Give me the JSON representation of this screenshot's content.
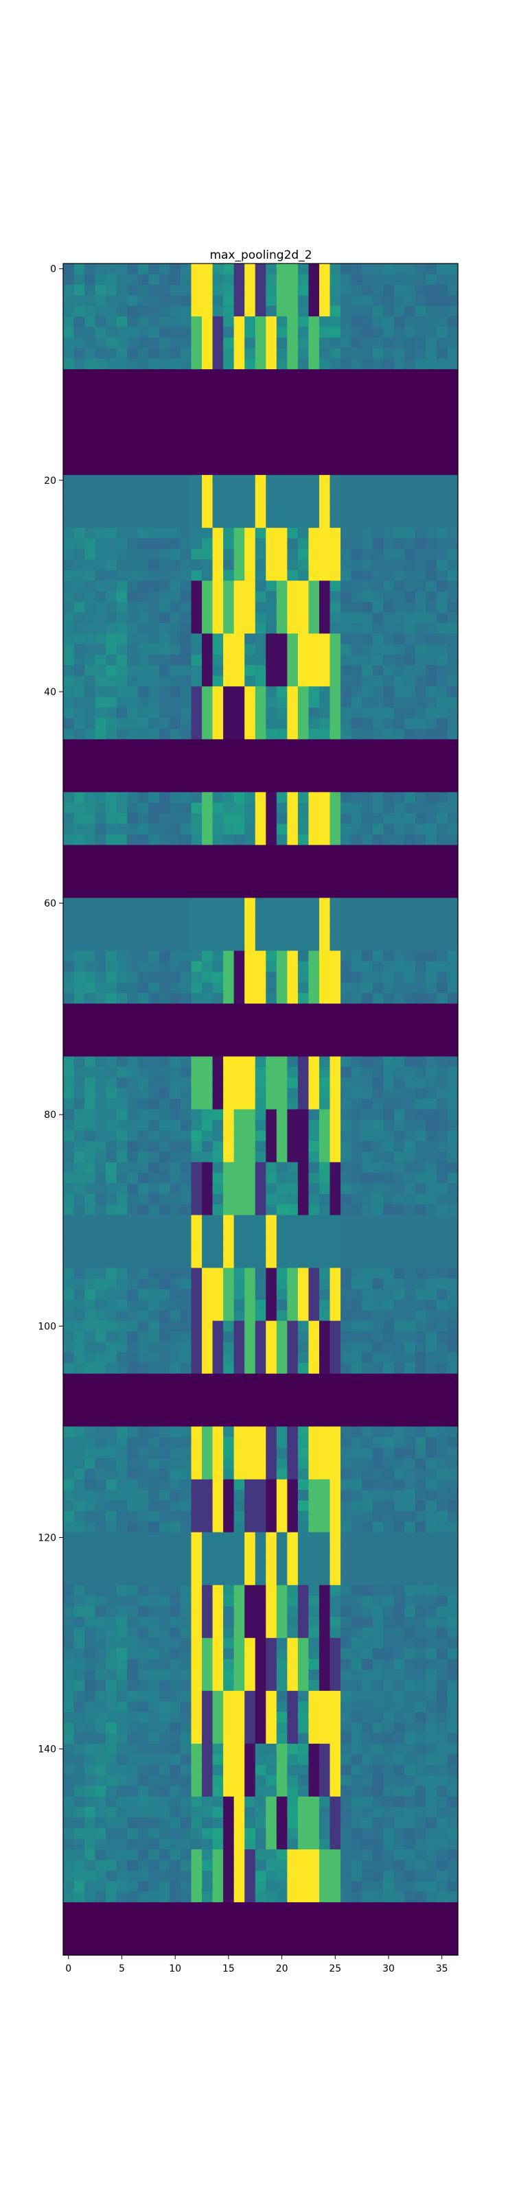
{
  "chart_data": {
    "type": "heatmap",
    "title": "max_pooling2d_2",
    "colormap": "viridis",
    "n_cols": 37,
    "n_rows": 160,
    "xlim": [
      -0.5,
      36.5
    ],
    "ylim": [
      159.5,
      -0.5
    ],
    "x_ticks": [
      0,
      5,
      10,
      15,
      20,
      25,
      30,
      35
    ],
    "y_ticks": [
      0,
      20,
      40,
      60,
      80,
      100,
      120,
      140
    ],
    "value_range": [
      0,
      1
    ],
    "bands": [
      {
        "rows": [
          0,
          4
        ],
        "kind": "active"
      },
      {
        "rows": [
          5,
          9
        ],
        "kind": "active"
      },
      {
        "rows": [
          10,
          19
        ],
        "kind": "zero",
        "value": 0
      },
      {
        "rows": [
          20,
          24
        ],
        "kind": "flat"
      },
      {
        "rows": [
          25,
          29
        ],
        "kind": "active"
      },
      {
        "rows": [
          30,
          34
        ],
        "kind": "active"
      },
      {
        "rows": [
          35,
          39
        ],
        "kind": "active"
      },
      {
        "rows": [
          40,
          44
        ],
        "kind": "active"
      },
      {
        "rows": [
          45,
          49
        ],
        "kind": "zero",
        "value": 0
      },
      {
        "rows": [
          50,
          54
        ],
        "kind": "active"
      },
      {
        "rows": [
          55,
          59
        ],
        "kind": "zero",
        "value": 0
      },
      {
        "rows": [
          60,
          64
        ],
        "kind": "flat"
      },
      {
        "rows": [
          65,
          69
        ],
        "kind": "active"
      },
      {
        "rows": [
          70,
          74
        ],
        "kind": "zero",
        "value": 0
      },
      {
        "rows": [
          75,
          79
        ],
        "kind": "active"
      },
      {
        "rows": [
          80,
          84
        ],
        "kind": "active"
      },
      {
        "rows": [
          85,
          89
        ],
        "kind": "active"
      },
      {
        "rows": [
          90,
          94
        ],
        "kind": "flat"
      },
      {
        "rows": [
          95,
          99
        ],
        "kind": "active"
      },
      {
        "rows": [
          100,
          104
        ],
        "kind": "active"
      },
      {
        "rows": [
          105,
          109
        ],
        "kind": "zero",
        "value": 0
      },
      {
        "rows": [
          110,
          114
        ],
        "kind": "active"
      },
      {
        "rows": [
          115,
          119
        ],
        "kind": "active"
      },
      {
        "rows": [
          120,
          124
        ],
        "kind": "flat"
      },
      {
        "rows": [
          125,
          129
        ],
        "kind": "active"
      },
      {
        "rows": [
          130,
          134
        ],
        "kind": "active"
      },
      {
        "rows": [
          135,
          139
        ],
        "kind": "active"
      },
      {
        "rows": [
          140,
          144
        ],
        "kind": "active"
      },
      {
        "rows": [
          145,
          149
        ],
        "kind": "active"
      },
      {
        "rows": [
          150,
          154
        ],
        "kind": "active"
      },
      {
        "rows": [
          155,
          159
        ],
        "kind": "zero",
        "value": 0
      }
    ]
  }
}
